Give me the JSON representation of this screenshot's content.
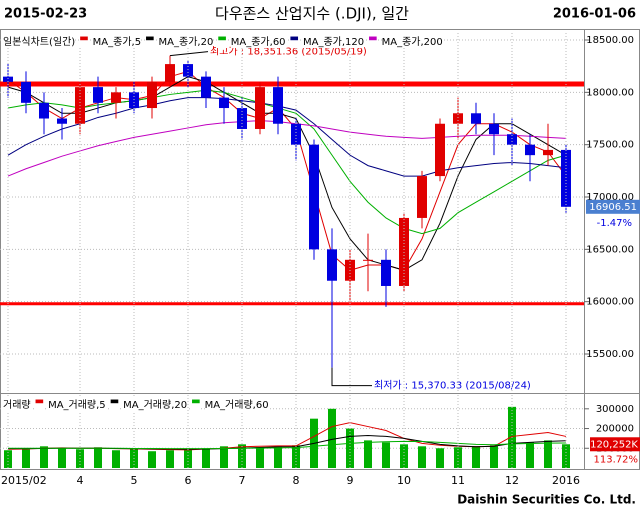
{
  "chart_data": [
    {
      "type": "candlestick",
      "title": "다우존스 산업지수 (.DJI), 일간",
      "start_date": "2015-02-23",
      "end_date": "2016-01-06",
      "legend_title": "일본식차트(일간)",
      "open": [
        18150,
        18100,
        17900,
        17750,
        17700,
        18050,
        17900,
        18000,
        17850,
        18100,
        18270,
        18150,
        17950,
        17850,
        17650,
        18050,
        17700,
        17500,
        16500,
        16200,
        16400,
        16400,
        16150,
        16800,
        17200,
        17700,
        17800,
        17700,
        17600,
        17500,
        17400,
        17450
      ],
      "high": [
        18280,
        18200,
        18000,
        17850,
        18100,
        18150,
        18050,
        18100,
        18150,
        18351.36,
        18300,
        18200,
        18050,
        17950,
        18100,
        18150,
        17750,
        17550,
        16700,
        16500,
        16650,
        16500,
        16850,
        17250,
        17750,
        17950,
        17900,
        17800,
        17750,
        17600,
        17700,
        17500
      ],
      "low": [
        17950,
        17800,
        17600,
        17550,
        17600,
        17800,
        17750,
        17800,
        17750,
        18050,
        18050,
        17850,
        17700,
        17550,
        17600,
        17600,
        17350,
        16400,
        15370.33,
        16000,
        16100,
        15950,
        16100,
        16700,
        17150,
        17550,
        17600,
        17400,
        17300,
        17150,
        17300,
        16850
      ],
      "close": [
        18100,
        17900,
        17750,
        17700,
        18050,
        17900,
        18000,
        17850,
        18100,
        18270,
        18150,
        17950,
        17850,
        17650,
        18050,
        17700,
        17500,
        16500,
        16200,
        16400,
        16400,
        16150,
        16800,
        17200,
        17700,
        17800,
        17700,
        17600,
        17500,
        17400,
        17450,
        16906.51
      ],
      "up_color": "#e00000",
      "down_color": "#0000e0",
      "series": [
        {
          "name": "MA_종가,5",
          "color": "#e00000",
          "values": [
            18120,
            18000,
            17850,
            17750,
            17850,
            17900,
            17950,
            17930,
            17970,
            18150,
            18200,
            18050,
            17950,
            17800,
            17750,
            17850,
            17650,
            17050,
            16450,
            16300,
            16350,
            16350,
            16300,
            16600,
            17050,
            17500,
            17700,
            17700,
            17620,
            17500,
            17430,
            17200
          ]
        },
        {
          "name": "MA_종가,20",
          "color": "#000000",
          "values": [
            18050,
            18000,
            17900,
            17800,
            17800,
            17850,
            17900,
            17920,
            17950,
            18050,
            18150,
            18100,
            18000,
            17900,
            17800,
            17800,
            17750,
            17400,
            16900,
            16600,
            16400,
            16350,
            16300,
            16400,
            16750,
            17200,
            17550,
            17700,
            17700,
            17600,
            17500,
            17400
          ]
        },
        {
          "name": "MA_종가,60",
          "color": "#00b000",
          "values": [
            17850,
            17880,
            17900,
            17880,
            17850,
            17880,
            17900,
            17920,
            17950,
            17980,
            18000,
            18020,
            18000,
            17950,
            17900,
            17850,
            17800,
            17650,
            17400,
            17150,
            16950,
            16800,
            16700,
            16650,
            16700,
            16850,
            16950,
            17050,
            17150,
            17250,
            17350,
            17400
          ]
        },
        {
          "name": "MA_종가,120",
          "color": "#000080",
          "values": [
            17400,
            17500,
            17580,
            17650,
            17700,
            17760,
            17800,
            17850,
            17880,
            17920,
            17950,
            17950,
            17940,
            17920,
            17900,
            17870,
            17830,
            17700,
            17550,
            17400,
            17300,
            17250,
            17200,
            17200,
            17250,
            17280,
            17300,
            17320,
            17330,
            17320,
            17300,
            17280
          ]
        },
        {
          "name": "MA_종가,200",
          "color": "#c000c0",
          "values": [
            17200,
            17270,
            17330,
            17390,
            17440,
            17490,
            17530,
            17570,
            17600,
            17630,
            17660,
            17690,
            17710,
            17720,
            17730,
            17720,
            17700,
            17680,
            17650,
            17620,
            17600,
            17580,
            17570,
            17560,
            17570,
            17580,
            17590,
            17590,
            17590,
            17580,
            17570,
            17560
          ]
        }
      ],
      "hlines": [
        18080,
        15980
      ],
      "hline_color": "#ff0000",
      "annotations": [
        "최고가 : 18,351.36 (2015/05/19)",
        "최저가 : 15,370.33 (2015/08/24)"
      ],
      "annotation_colors": [
        "#e00000",
        "#0000e0"
      ],
      "last_price": {
        "value": 16906.51,
        "label": "16906.51",
        "change": "-1.47%"
      },
      "ylim": [
        15137,
        18567
      ],
      "yticks": [
        {
          "value": 15500,
          "label": "15500.00"
        },
        {
          "value": 16000,
          "label": "16000.00"
        },
        {
          "value": 16500,
          "label": "16500.00"
        },
        {
          "value": 17000,
          "label": "17000.00"
        },
        {
          "value": 17500,
          "label": "17500.00"
        },
        {
          "value": 18000,
          "label": "18000.00"
        },
        {
          "value": 18500,
          "label": "18500.00"
        }
      ]
    },
    {
      "type": "bar",
      "title": "거래량",
      "color": "#00b000",
      "categories": [
        "2015/02",
        null,
        null,
        null,
        "4",
        null,
        null,
        "5",
        null,
        null,
        "6",
        null,
        null,
        "7",
        null,
        null,
        "8",
        null,
        null,
        "9",
        null,
        null,
        "10",
        null,
        null,
        "11",
        null,
        null,
        "12",
        null,
        null,
        "2016"
      ],
      "values": [
        90000,
        95000,
        110000,
        100000,
        95000,
        105000,
        90000,
        100000,
        85000,
        90000,
        95000,
        100000,
        110000,
        120000,
        105000,
        110000,
        115000,
        250000,
        300000,
        200000,
        140000,
        130000,
        120000,
        110000,
        100000,
        105000,
        110000,
        115000,
        310000,
        130000,
        140000,
        120252
      ],
      "series": [
        {
          "name": "MA_거래량,5",
          "color": "#e00000",
          "values": [
            95000,
            96000,
            100000,
            102000,
            100000,
            101000,
            98000,
            97000,
            95000,
            93000,
            92000,
            96000,
            100000,
            108000,
            110000,
            112000,
            112000,
            160000,
            210000,
            230000,
            210000,
            190000,
            150000,
            125000,
            115000,
            110000,
            108000,
            110000,
            160000,
            170000,
            180000,
            160000
          ]
        },
        {
          "name": "MA_거래량,20",
          "color": "#000000",
          "values": [
            98000,
            98000,
            99000,
            100000,
            100000,
            100000,
            99000,
            98000,
            97000,
            96000,
            95000,
            96000,
            98000,
            101000,
            104000,
            107000,
            108000,
            125000,
            145000,
            160000,
            165000,
            160000,
            150000,
            135000,
            120000,
            112000,
            108000,
            110000,
            125000,
            130000,
            135000,
            138000
          ]
        },
        {
          "name": "MA_거래량,60",
          "color": "#00b000",
          "values": [
            100000,
            100000,
            100000,
            100000,
            100000,
            100000,
            100000,
            99000,
            99000,
            98000,
            98000,
            98000,
            99000,
            100000,
            101000,
            102000,
            103000,
            110000,
            118000,
            125000,
            130000,
            133000,
            135000,
            134000,
            130000,
            125000,
            120000,
            118000,
            122000,
            124000,
            126000,
            127000
          ]
        }
      ],
      "last_label": "120,252K",
      "ratio_label": "113.72%",
      "ylim": [
        0,
        370000
      ],
      "yticks": [
        100000,
        200000,
        300000
      ]
    }
  ],
  "credit": "Daishin Securities Co. Ltd."
}
